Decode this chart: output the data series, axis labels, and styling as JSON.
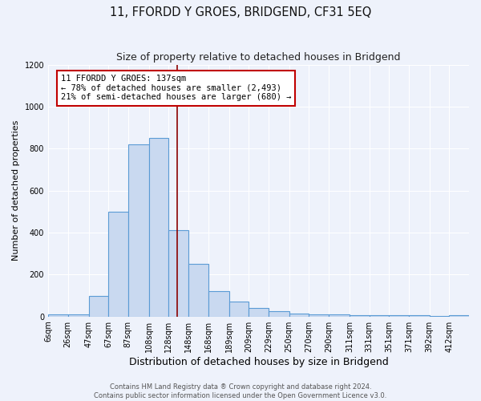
{
  "title": "11, FFORDD Y GROES, BRIDGEND, CF31 5EQ",
  "subtitle": "Size of property relative to detached houses in Bridgend",
  "xlabel": "Distribution of detached houses by size in Bridgend",
  "ylabel": "Number of detached properties",
  "bin_labels": [
    "6sqm",
    "26sqm",
    "47sqm",
    "67sqm",
    "87sqm",
    "108sqm",
    "128sqm",
    "148sqm",
    "168sqm",
    "189sqm",
    "209sqm",
    "229sqm",
    "250sqm",
    "270sqm",
    "290sqm",
    "311sqm",
    "331sqm",
    "351sqm",
    "371sqm",
    "392sqm",
    "412sqm"
  ],
  "bin_lefts": [
    6,
    26,
    47,
    67,
    87,
    108,
    128,
    148,
    168,
    189,
    209,
    229,
    250,
    270,
    290,
    311,
    331,
    351,
    371,
    392,
    412
  ],
  "bin_widths": [
    20,
    21,
    20,
    20,
    21,
    20,
    20,
    20,
    21,
    20,
    20,
    21,
    20,
    20,
    21,
    20,
    20,
    20,
    21,
    20,
    20
  ],
  "bar_heights": [
    10,
    10,
    100,
    500,
    820,
    850,
    410,
    250,
    120,
    70,
    40,
    25,
    15,
    12,
    10,
    8,
    5,
    8,
    5,
    2,
    5
  ],
  "bar_facecolor": "#c9d9f0",
  "bar_edgecolor": "#5b9bd5",
  "property_line_x": 137,
  "property_line_color": "#8b0000",
  "annotation_text": "11 FFORDD Y GROES: 137sqm\n← 78% of detached houses are smaller (2,493)\n21% of semi-detached houses are larger (680) →",
  "annotation_box_color": "#ffffff",
  "annotation_box_edgecolor": "#c00000",
  "ylim": [
    0,
    1200
  ],
  "yticks": [
    0,
    200,
    400,
    600,
    800,
    1000,
    1200
  ],
  "background_color": "#eef2fb",
  "fig_background_color": "#eef2fb",
  "footer_text": "Contains HM Land Registry data ® Crown copyright and database right 2024.\nContains public sector information licensed under the Open Government Licence v3.0.",
  "grid_color": "#ffffff",
  "title_fontsize": 10.5,
  "subtitle_fontsize": 9,
  "xlabel_fontsize": 9,
  "ylabel_fontsize": 8,
  "tick_fontsize": 7,
  "footer_fontsize": 6,
  "annotation_fontsize": 7.5
}
